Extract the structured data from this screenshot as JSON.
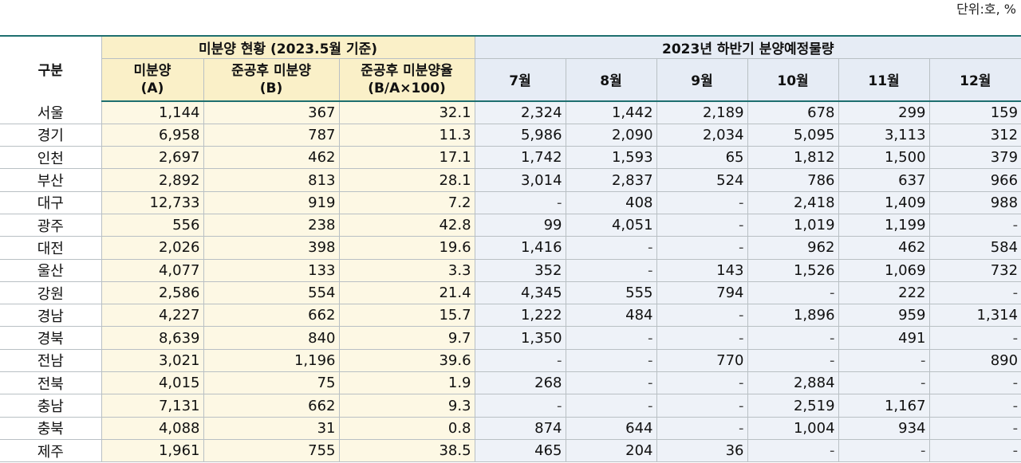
{
  "unit_label": "단위:호, %",
  "header": {
    "gubun": "구분",
    "group_a": "미분양 현황 (2023.5월 기준)",
    "group_b": "2023년 하반기 분양예정물량",
    "sub_a": [
      {
        "line1": "미분양",
        "line2": "(A)"
      },
      {
        "line1": "준공후 미분양",
        "line2": "(B)"
      },
      {
        "line1": "준공후 미분양율",
        "line2": "(B/A×100)"
      }
    ],
    "months": [
      "7월",
      "8월",
      "9월",
      "10월",
      "11월",
      "12월"
    ]
  },
  "rows": [
    {
      "region": "서울",
      "a": [
        "1,144",
        "367",
        "32.1"
      ],
      "m": [
        "2,324",
        "1,442",
        "2,189",
        "678",
        "299",
        "159"
      ]
    },
    {
      "region": "경기",
      "a": [
        "6,958",
        "787",
        "11.3"
      ],
      "m": [
        "5,986",
        "2,090",
        "2,034",
        "5,095",
        "3,113",
        "312"
      ]
    },
    {
      "region": "인천",
      "a": [
        "2,697",
        "462",
        "17.1"
      ],
      "m": [
        "1,742",
        "1,593",
        "65",
        "1,812",
        "1,500",
        "379"
      ]
    },
    {
      "region": "부산",
      "a": [
        "2,892",
        "813",
        "28.1"
      ],
      "m": [
        "3,014",
        "2,837",
        "524",
        "786",
        "637",
        "966"
      ]
    },
    {
      "region": "대구",
      "a": [
        "12,733",
        "919",
        "7.2"
      ],
      "m": [
        "-",
        "408",
        "-",
        "2,418",
        "1,409",
        "988"
      ]
    },
    {
      "region": "광주",
      "a": [
        "556",
        "238",
        "42.8"
      ],
      "m": [
        "99",
        "4,051",
        "-",
        "1,019",
        "1,199",
        "-"
      ]
    },
    {
      "region": "대전",
      "a": [
        "2,026",
        "398",
        "19.6"
      ],
      "m": [
        "1,416",
        "-",
        "-",
        "962",
        "462",
        "584"
      ]
    },
    {
      "region": "울산",
      "a": [
        "4,077",
        "133",
        "3.3"
      ],
      "m": [
        "352",
        "-",
        "143",
        "1,526",
        "1,069",
        "732"
      ]
    },
    {
      "region": "강원",
      "a": [
        "2,586",
        "554",
        "21.4"
      ],
      "m": [
        "4,345",
        "555",
        "794",
        "-",
        "222",
        "-"
      ]
    },
    {
      "region": "경남",
      "a": [
        "4,227",
        "662",
        "15.7"
      ],
      "m": [
        "1,222",
        "484",
        "-",
        "1,896",
        "959",
        "1,314"
      ]
    },
    {
      "region": "경북",
      "a": [
        "8,639",
        "840",
        "9.7"
      ],
      "m": [
        "1,350",
        "-",
        "-",
        "-",
        "491",
        "-"
      ]
    },
    {
      "region": "전남",
      "a": [
        "3,021",
        "1,196",
        "39.6"
      ],
      "m": [
        "-",
        "-",
        "770",
        "-",
        "-",
        "890"
      ]
    },
    {
      "region": "전북",
      "a": [
        "4,015",
        "75",
        "1.9"
      ],
      "m": [
        "268",
        "-",
        "-",
        "2,884",
        "-",
        "-"
      ]
    },
    {
      "region": "충남",
      "a": [
        "7,131",
        "662",
        "9.3"
      ],
      "m": [
        "-",
        "-",
        "-",
        "2,519",
        "1,167",
        "-"
      ]
    },
    {
      "region": "충북",
      "a": [
        "4,088",
        "31",
        "0.8"
      ],
      "m": [
        "874",
        "644",
        "-",
        "1,004",
        "934",
        "-"
      ]
    },
    {
      "region": "제주",
      "a": [
        "1,961",
        "755",
        "38.5"
      ],
      "m": [
        "465",
        "204",
        "36",
        "-",
        "-",
        "-"
      ]
    }
  ]
}
